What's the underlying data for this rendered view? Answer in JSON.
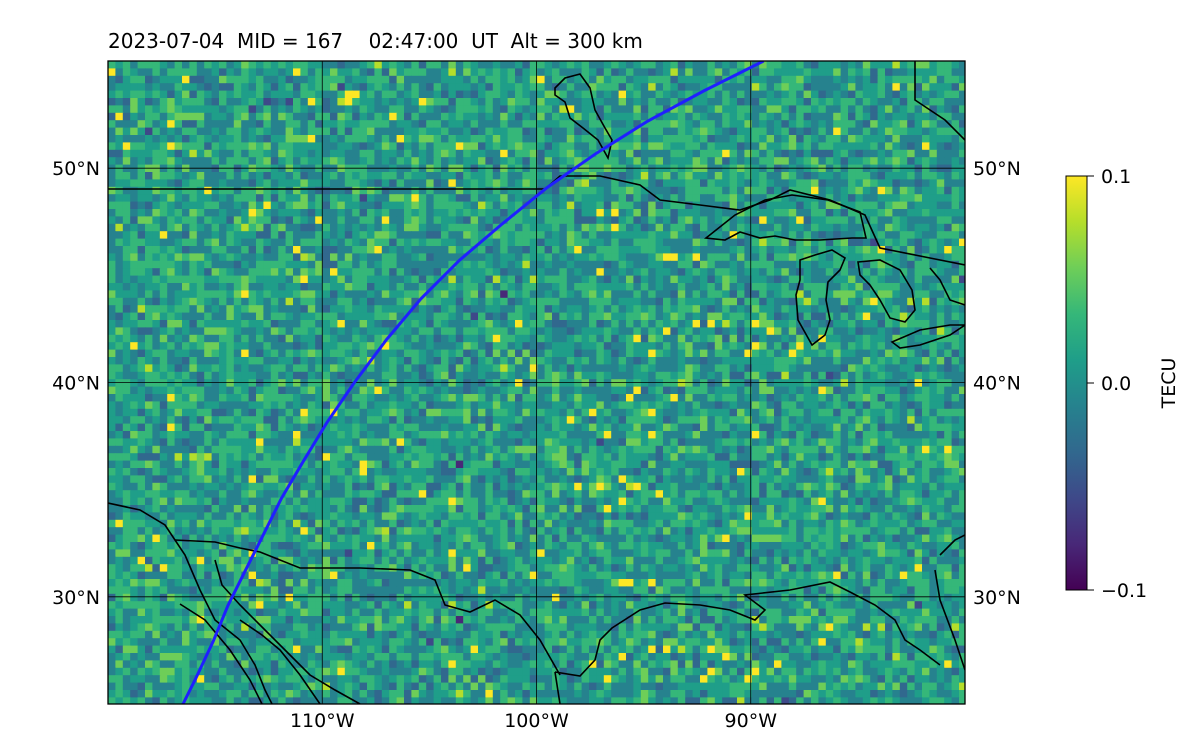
{
  "title": "2023-07-04  MID = 167    02:47:00  UT  Alt = 300 km",
  "map": {
    "lon_range": [
      -120,
      -80
    ],
    "lat_range": [
      25,
      55
    ],
    "lon_ticks": [
      {
        "value": -110,
        "label": "110°W"
      },
      {
        "value": -100,
        "label": "100°W"
      },
      {
        "value": -90,
        "label": "90°W"
      }
    ],
    "lat_ticks": [
      {
        "value": 30,
        "label": "30°N"
      },
      {
        "value": 40,
        "label": "40°N"
      },
      {
        "value": 50,
        "label": "50°N"
      }
    ],
    "track_color": "#1f1fff",
    "track": [
      [
        -116.5,
        25
      ],
      [
        -115.9,
        26.2
      ],
      [
        -115.1,
        27.9
      ],
      [
        -114.4,
        29.6
      ],
      [
        -113.6,
        31.2
      ],
      [
        -112.8,
        32.8
      ],
      [
        -111.9,
        34.6
      ],
      [
        -110.9,
        36.3
      ],
      [
        -109.8,
        38.1
      ],
      [
        -108.5,
        40.0
      ],
      [
        -107.0,
        42.0
      ],
      [
        -105.4,
        43.9
      ],
      [
        -103.6,
        45.7
      ],
      [
        -101.6,
        47.4
      ],
      [
        -99.5,
        49.1
      ],
      [
        -97.2,
        50.7
      ],
      [
        -94.8,
        52.2
      ],
      [
        -92.2,
        53.6
      ],
      [
        -89.4,
        55
      ]
    ],
    "boundary_color": "#000000"
  },
  "colorbar": {
    "label": "TECU",
    "min": -0.1,
    "max": 0.1,
    "ticks": [
      {
        "value": 0.1,
        "label": "0.1"
      },
      {
        "value": 0.0,
        "label": "0.0"
      },
      {
        "value": -0.1,
        "label": "−0.1"
      }
    ],
    "colormap": [
      "#440154",
      "#482878",
      "#3e4989",
      "#31688e",
      "#26828e",
      "#1f9e89",
      "#35b779",
      "#6ece58",
      "#b5de2b",
      "#fde725"
    ]
  }
}
